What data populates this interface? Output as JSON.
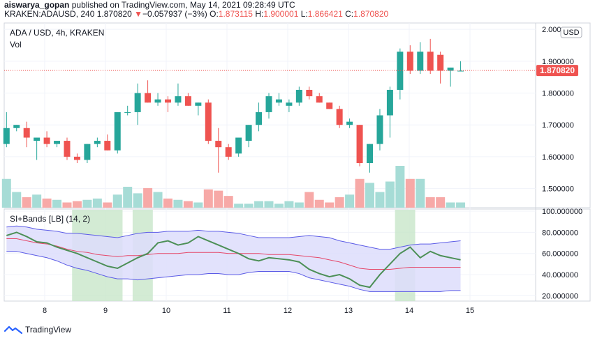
{
  "header": {
    "author": "aiswarya_gopan",
    "published_text": "published on TradingView.com, May 14, 2021 09:28:49 UTC",
    "symbol_line": "KRAKEN:ADAUSD, 240",
    "last_price": "1.870820",
    "change_arrow": "▼",
    "change": "−0.057937 (−3%)",
    "o_label": "O:",
    "o_value": "1.873115",
    "h_label": "H:",
    "h_value": "1.900001",
    "l_label": "L:",
    "l_value": "1.866421",
    "c_label": "C:",
    "c_value": "1.870820"
  },
  "main_pane": {
    "title": "ADA / USD, 4h, KRAKEN",
    "vol_label": "Vol",
    "currency_badge": "USD",
    "price_tag": "1.870820"
  },
  "indicator_pane": {
    "title": "SI+Bands [LB] (14, 2)"
  },
  "footer": {
    "brand": "TradingView"
  },
  "colors": {
    "up": "#26a69a",
    "down": "#ef5350",
    "vol_up": "#a6dcd6",
    "vol_down": "#f7a9a7",
    "band_fill": "#ddddfb",
    "band_line": "#5b5be6",
    "basis": "#e5486a",
    "si_line": "#4c8f56",
    "highlight": "#c8e6c9"
  },
  "chart_data": [
    {
      "type": "candlestick",
      "title": "ADA / USD, 4h, KRAKEN",
      "x_ticks": [
        "8",
        "9",
        "10",
        "11",
        "12",
        "13",
        "14",
        "15"
      ],
      "y_ticks": [
        "2.000000",
        "1.900000",
        "1.800000",
        "1.700000",
        "1.600000",
        "1.500000"
      ],
      "y_range": [
        1.44,
        2.02
      ],
      "last_price": 1.87082,
      "candles": [
        {
          "o": 1.64,
          "h": 1.74,
          "l": 1.63,
          "c": 1.69
        },
        {
          "o": 1.69,
          "h": 1.7,
          "l": 1.68,
          "c": 1.7
        },
        {
          "o": 1.69,
          "h": 1.71,
          "l": 1.63,
          "c": 1.66
        },
        {
          "o": 1.65,
          "h": 1.66,
          "l": 1.59,
          "c": 1.66
        },
        {
          "o": 1.66,
          "h": 1.68,
          "l": 1.63,
          "c": 1.64
        },
        {
          "o": 1.64,
          "h": 1.65,
          "l": 1.63,
          "c": 1.65
        },
        {
          "o": 1.65,
          "h": 1.66,
          "l": 1.59,
          "c": 1.6
        },
        {
          "o": 1.6,
          "h": 1.61,
          "l": 1.58,
          "c": 1.59
        },
        {
          "o": 1.59,
          "h": 1.64,
          "l": 1.58,
          "c": 1.64
        },
        {
          "o": 1.64,
          "h": 1.66,
          "l": 1.63,
          "c": 1.65
        },
        {
          "o": 1.65,
          "h": 1.67,
          "l": 1.62,
          "c": 1.62
        },
        {
          "o": 1.62,
          "h": 1.74,
          "l": 1.61,
          "c": 1.74
        },
        {
          "o": 1.74,
          "h": 1.76,
          "l": 1.73,
          "c": 1.74
        },
        {
          "o": 1.74,
          "h": 1.83,
          "l": 1.7,
          "c": 1.8
        },
        {
          "o": 1.8,
          "h": 1.84,
          "l": 1.77,
          "c": 1.77
        },
        {
          "o": 1.77,
          "h": 1.8,
          "l": 1.76,
          "c": 1.78
        },
        {
          "o": 1.78,
          "h": 1.79,
          "l": 1.74,
          "c": 1.77
        },
        {
          "o": 1.77,
          "h": 1.83,
          "l": 1.76,
          "c": 1.79
        },
        {
          "o": 1.79,
          "h": 1.8,
          "l": 1.76,
          "c": 1.76
        },
        {
          "o": 1.76,
          "h": 1.77,
          "l": 1.73,
          "c": 1.77
        },
        {
          "o": 1.77,
          "h": 1.78,
          "l": 1.64,
          "c": 1.65
        },
        {
          "o": 1.65,
          "h": 1.69,
          "l": 1.55,
          "c": 1.63
        },
        {
          "o": 1.63,
          "h": 1.64,
          "l": 1.59,
          "c": 1.6
        },
        {
          "o": 1.61,
          "h": 1.66,
          "l": 1.6,
          "c": 1.66
        },
        {
          "o": 1.65,
          "h": 1.7,
          "l": 1.63,
          "c": 1.7
        },
        {
          "o": 1.7,
          "h": 1.77,
          "l": 1.68,
          "c": 1.74
        },
        {
          "o": 1.74,
          "h": 1.8,
          "l": 1.72,
          "c": 1.79
        },
        {
          "o": 1.77,
          "h": 1.8,
          "l": 1.76,
          "c": 1.78
        },
        {
          "o": 1.76,
          "h": 1.78,
          "l": 1.74,
          "c": 1.77
        },
        {
          "o": 1.77,
          "h": 1.82,
          "l": 1.76,
          "c": 1.81
        },
        {
          "o": 1.81,
          "h": 1.82,
          "l": 1.78,
          "c": 1.79
        },
        {
          "o": 1.79,
          "h": 1.8,
          "l": 1.77,
          "c": 1.77
        },
        {
          "o": 1.77,
          "h": 1.77,
          "l": 1.75,
          "c": 1.75
        },
        {
          "o": 1.75,
          "h": 1.76,
          "l": 1.69,
          "c": 1.7
        },
        {
          "o": 1.7,
          "h": 1.72,
          "l": 1.69,
          "c": 1.71
        },
        {
          "o": 1.7,
          "h": 1.7,
          "l": 1.57,
          "c": 1.58
        },
        {
          "o": 1.58,
          "h": 1.64,
          "l": 1.55,
          "c": 1.64
        },
        {
          "o": 1.64,
          "h": 1.75,
          "l": 1.62,
          "c": 1.73
        },
        {
          "o": 1.73,
          "h": 1.82,
          "l": 1.66,
          "c": 1.81
        },
        {
          "o": 1.81,
          "h": 1.94,
          "l": 1.78,
          "c": 1.93
        },
        {
          "o": 1.93,
          "h": 1.95,
          "l": 1.86,
          "c": 1.87
        },
        {
          "o": 1.87,
          "h": 1.96,
          "l": 1.86,
          "c": 1.93
        },
        {
          "o": 1.93,
          "h": 1.97,
          "l": 1.86,
          "c": 1.87
        },
        {
          "o": 1.92,
          "h": 1.93,
          "l": 1.83,
          "c": 1.87
        },
        {
          "o": 1.87,
          "h": 1.88,
          "l": 1.82,
          "c": 1.88
        },
        {
          "o": 1.87,
          "h": 1.9,
          "l": 1.87,
          "c": 1.87
        }
      ],
      "volume": [
        22,
        12,
        8,
        10,
        7,
        6,
        4,
        5,
        6,
        7,
        4,
        10,
        16,
        11,
        15,
        12,
        7,
        6,
        5,
        4,
        14,
        13,
        9,
        3,
        3,
        5,
        5,
        3,
        5,
        4,
        12,
        6,
        4,
        8,
        10,
        22,
        19,
        12,
        20,
        32,
        22,
        22,
        8,
        8,
        4,
        4
      ]
    },
    {
      "type": "line",
      "title": "SI+Bands [LB] (14, 2)",
      "y_ticks": [
        "100.000000",
        "80.000000",
        "60.000000",
        "40.000000",
        "20.000000"
      ],
      "y_range": [
        15,
        102
      ],
      "highlight_bars": [
        [
          7,
          11
        ],
        [
          13,
          14
        ],
        [
          39,
          40
        ]
      ],
      "series": [
        {
          "key": "si",
          "values": [
            77,
            80,
            76,
            71,
            70,
            66,
            63,
            60,
            56,
            52,
            48,
            46,
            51,
            56,
            60,
            70,
            72,
            68,
            70,
            76,
            72,
            68,
            64,
            60,
            55,
            53,
            56,
            55,
            54,
            52,
            45,
            41,
            38,
            40,
            36,
            30,
            28,
            40,
            50,
            60,
            66,
            56,
            62,
            58,
            56,
            54
          ]
        },
        {
          "key": "upper_band",
          "values": [
            85,
            86,
            85,
            83,
            82,
            81,
            79,
            79,
            78,
            77,
            76,
            75,
            77,
            79,
            80,
            80,
            81,
            81,
            81,
            82,
            81,
            81,
            80,
            79,
            77,
            75,
            75,
            75,
            75,
            76,
            77,
            76,
            75,
            72,
            70,
            68,
            66,
            64,
            64,
            66,
            68,
            69,
            69,
            70,
            71,
            72
          ]
        },
        {
          "key": "basis",
          "values": [
            74,
            74,
            72,
            70,
            69,
            67,
            64,
            62,
            61,
            59,
            58,
            57,
            58,
            58,
            59,
            60,
            60,
            60,
            61,
            61,
            61,
            61,
            60,
            60,
            60,
            60,
            59,
            59,
            59,
            58,
            57,
            56,
            54,
            52,
            49,
            46,
            45,
            45,
            45,
            46,
            47,
            47,
            47,
            47,
            47,
            47
          ]
        },
        {
          "key": "lower_band",
          "values": [
            62,
            62,
            60,
            58,
            56,
            53,
            49,
            46,
            44,
            41,
            38,
            36,
            36,
            35,
            36,
            37,
            38,
            39,
            40,
            40,
            41,
            41,
            40,
            40,
            42,
            43,
            43,
            43,
            43,
            41,
            37,
            35,
            33,
            31,
            29,
            26,
            24,
            24,
            24,
            24,
            24,
            24,
            24,
            24,
            25,
            25
          ]
        }
      ]
    }
  ]
}
